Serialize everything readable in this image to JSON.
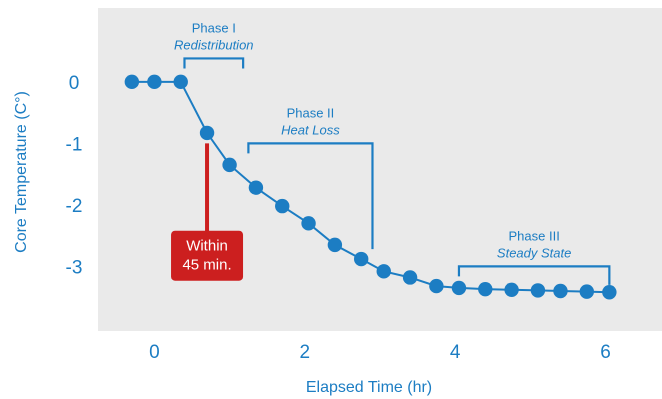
{
  "chart_data": {
    "type": "line",
    "title": "",
    "xlabel": "Elapsed Time (hr)",
    "ylabel": "Core Temperature (C°)",
    "xlim": [
      -0.75,
      6.75
    ],
    "ylim": [
      -4.05,
      1.2
    ],
    "x_ticks": [
      0,
      2,
      4,
      6
    ],
    "y_ticks": [
      0,
      -1,
      -2,
      -3
    ],
    "grid": false,
    "series": [
      {
        "x": [
          -0.3,
          0.0,
          0.35,
          0.7,
          1.0,
          1.35,
          1.7,
          2.05,
          2.4,
          2.75,
          3.05,
          3.4,
          3.75,
          4.05,
          4.4,
          4.75,
          5.1,
          5.4,
          5.75,
          6.05
        ],
        "y": [
          0,
          0,
          0,
          -0.83,
          -1.35,
          -1.72,
          -2.02,
          -2.3,
          -2.65,
          -2.88,
          -3.08,
          -3.18,
          -3.32,
          -3.35,
          -3.37,
          -3.38,
          -3.39,
          -3.4,
          -3.41,
          -3.42
        ]
      }
    ],
    "phases": [
      {
        "title": "Phase I",
        "subtitle": "Redistribution",
        "x_start": 0.4,
        "x_end": 1.18,
        "y": 0.38,
        "y_end": 0.38
      },
      {
        "title": "Phase II",
        "subtitle": "Heat Loss",
        "x_start": 1.25,
        "x_end": 2.9,
        "y": -1.0,
        "y_end": -2.72
      },
      {
        "title": "Phase III",
        "subtitle": "Steady State",
        "x_start": 4.05,
        "x_end": 6.05,
        "y": -3.0,
        "y_end": -3.3
      }
    ],
    "callout": {
      "lines": [
        "Within",
        "45 min."
      ],
      "x": 0.7,
      "from_y": -1.0,
      "to_y": -2.55
    }
  },
  "colors": {
    "plot_background": "#eaeaea",
    "series": "#1c7dc3",
    "callout": "#cc1f1f"
  }
}
